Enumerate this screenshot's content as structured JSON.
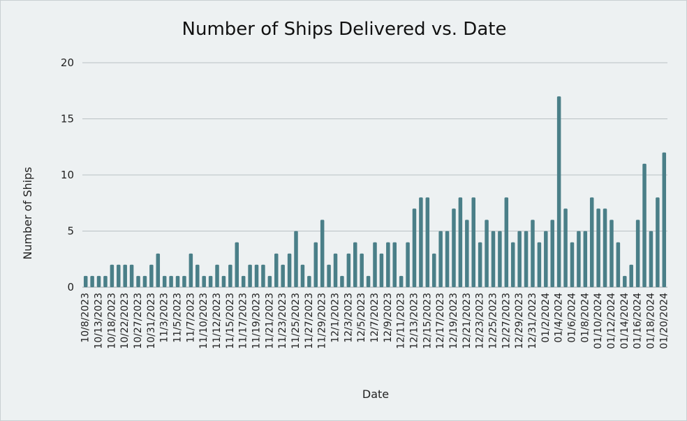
{
  "chart_data": {
    "type": "bar",
    "title": "Number of Ships Delivered vs. Date",
    "xlabel": "Date",
    "ylabel": "Number of Ships",
    "ylim": [
      0,
      20
    ],
    "yticks": [
      0,
      5,
      10,
      15,
      20
    ],
    "grid": true,
    "bar_color": "#4a7f88",
    "background_color": "#edf1f2",
    "values": [
      1,
      1,
      1,
      1,
      2,
      2,
      2,
      2,
      1,
      1,
      2,
      3,
      1,
      1,
      1,
      1,
      3,
      2,
      1,
      1,
      2,
      1,
      2,
      4,
      1,
      2,
      2,
      2,
      1,
      3,
      2,
      3,
      5,
      2,
      1,
      4,
      6,
      2,
      3,
      1,
      3,
      4,
      3,
      1,
      4,
      3,
      4,
      4,
      1,
      4,
      7,
      8,
      8,
      3,
      5,
      5,
      7,
      8,
      6,
      8,
      4,
      6,
      5,
      5,
      8,
      4,
      5,
      5,
      6,
      4,
      5,
      6,
      17,
      7,
      4,
      5,
      5,
      8,
      7,
      7,
      6,
      4,
      1,
      2,
      6,
      11,
      5,
      8,
      12
    ],
    "tick_labels": [
      "10/8/2023",
      "10/13/2023",
      "10/18/2023",
      "10/22/2023",
      "10/27/2023",
      "10/31/2023",
      "11/3/2023",
      "11/5/2023",
      "11/7/2023",
      "11/10/2023",
      "11/12/2023",
      "11/15/2023",
      "11/17/2023",
      "11/19/2023",
      "11/21/2023",
      "11/23/2023",
      "11/25/2023",
      "11/27/2023",
      "11/29/2023",
      "12/1/2023",
      "12/3/2023",
      "12/5/2023",
      "12/7/2023",
      "12/9/2023",
      "12/11/2023",
      "12/13/2023",
      "12/15/2023",
      "12/17/2023",
      "12/19/2023",
      "12/21/2023",
      "12/23/2023",
      "12/25/2023",
      "12/27/2023",
      "12/29/2023",
      "12/31/2023",
      "01/2/2024",
      "01/4/2024",
      "01/6/2024",
      "01/8/2024",
      "01/10/2024",
      "01/12/2024",
      "01/14/2024",
      "01/16/2024",
      "01/18/2024",
      "01/20/2024"
    ]
  }
}
